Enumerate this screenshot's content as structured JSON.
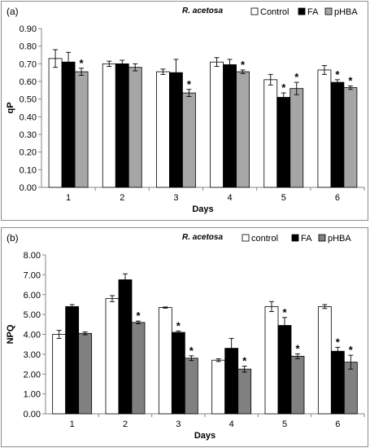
{
  "chart_data": [
    {
      "panel_label": "(a)",
      "type": "bar",
      "title": "R. acetosa",
      "xlabel": "Days",
      "ylabel": "qP",
      "categories": [
        "1",
        "2",
        "3",
        "4",
        "5",
        "6"
      ],
      "ylim": [
        0,
        0.9
      ],
      "ytick_step": 0.1,
      "ytick_decimals": 2,
      "grid": false,
      "legend_position": "top-right",
      "series": [
        {
          "name": "Control",
          "color": "#ffffff",
          "values": [
            0.73,
            0.7,
            0.655,
            0.71,
            0.61,
            0.665
          ],
          "errors": [
            0.05,
            0.015,
            0.015,
            0.025,
            0.03,
            0.025
          ],
          "significant": [
            false,
            false,
            false,
            false,
            false,
            false
          ]
        },
        {
          "name": "FA",
          "color": "#000000",
          "values": [
            0.71,
            0.7,
            0.65,
            0.695,
            0.51,
            0.595
          ],
          "errors": [
            0.055,
            0.02,
            0.075,
            0.03,
            0.025,
            0.015
          ],
          "significant": [
            false,
            false,
            false,
            false,
            true,
            true
          ]
        },
        {
          "name": "pHBA",
          "color": "#a6a6a6",
          "values": [
            0.655,
            0.68,
            0.535,
            0.655,
            0.56,
            0.565
          ],
          "errors": [
            0.02,
            0.02,
            0.02,
            0.01,
            0.035,
            0.01
          ],
          "significant": [
            true,
            false,
            true,
            true,
            true,
            true
          ]
        }
      ],
      "significance_marker": "*"
    },
    {
      "panel_label": "(b)",
      "type": "bar",
      "title": "R. acetosa",
      "xlabel": "Days",
      "ylabel": "NPQ",
      "categories": [
        "1",
        "2",
        "3",
        "4",
        "5",
        "6"
      ],
      "ylim": [
        0,
        8
      ],
      "ytick_step": 1,
      "ytick_decimals": 2,
      "grid": false,
      "legend_position": "top-right",
      "series": [
        {
          "name": "control",
          "color": "#ffffff",
          "values": [
            4.0,
            5.8,
            5.35,
            2.7,
            5.4,
            5.4
          ],
          "errors": [
            0.2,
            0.15,
            0.03,
            0.07,
            0.25,
            0.1
          ],
          "significant": [
            false,
            false,
            false,
            false,
            false,
            false
          ]
        },
        {
          "name": "FA",
          "color": "#000000",
          "values": [
            5.4,
            6.75,
            4.1,
            3.3,
            4.45,
            3.15
          ],
          "errors": [
            0.1,
            0.3,
            0.07,
            0.5,
            0.4,
            0.2
          ],
          "significant": [
            false,
            false,
            true,
            false,
            true,
            true
          ]
        },
        {
          "name": "pHBA",
          "color": "#808080",
          "values": [
            4.05,
            4.6,
            2.8,
            2.25,
            2.9,
            2.6
          ],
          "errors": [
            0.07,
            0.07,
            0.12,
            0.15,
            0.12,
            0.35
          ],
          "significant": [
            false,
            true,
            true,
            true,
            true,
            true
          ]
        }
      ],
      "significance_marker": "*"
    }
  ]
}
